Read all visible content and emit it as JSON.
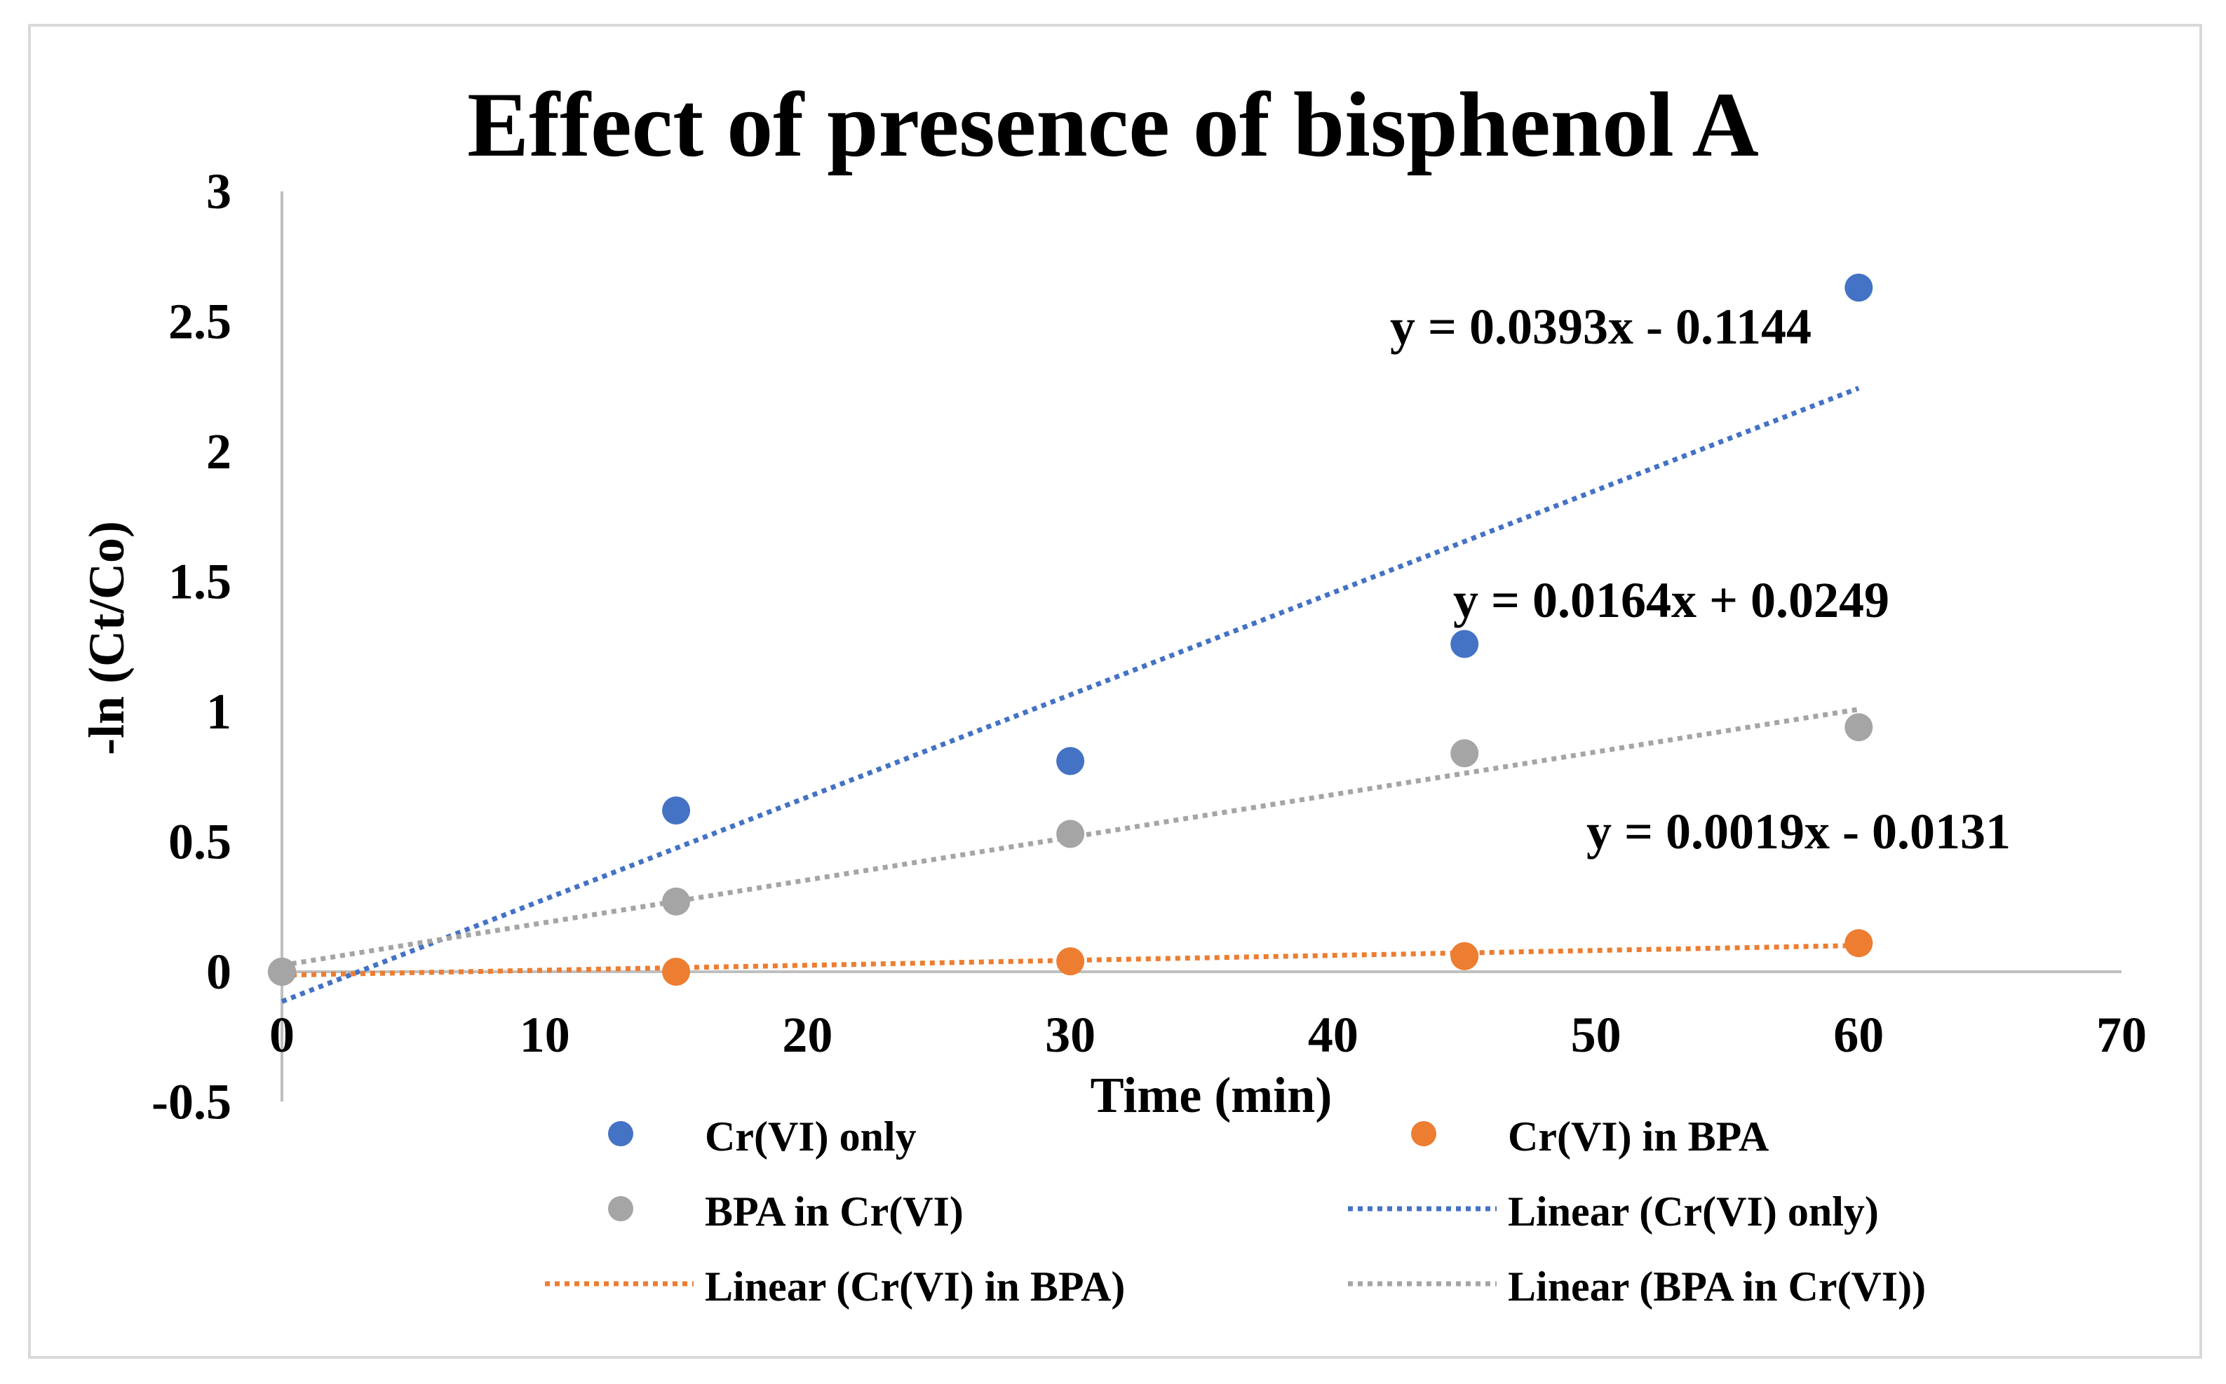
{
  "chart_data": {
    "type": "scatter",
    "title": "Effect of presence of bisphenol A",
    "xlabel": "Time (min)",
    "ylabel": "-ln (Ct/Co)",
    "xlim": [
      0,
      70
    ],
    "ylim": [
      -0.5,
      3
    ],
    "xticks": [
      0,
      10,
      20,
      30,
      40,
      50,
      60,
      70
    ],
    "xtick_labels": [
      "0",
      "10",
      "20",
      "30",
      "40",
      "50",
      "60",
      "70"
    ],
    "yticks": [
      -0.5,
      0,
      0.5,
      1,
      1.5,
      2,
      2.5,
      3
    ],
    "ytick_labels": [
      "-0.5",
      "0",
      "0.5",
      "1",
      "1.5",
      "2",
      "2.5",
      "3"
    ],
    "grid": false,
    "legend_position": "bottom",
    "series": [
      {
        "name": "Cr(VI) only",
        "color": "#4472C4",
        "x": [
          0,
          15,
          30,
          45,
          60
        ],
        "y": [
          0,
          0.62,
          0.81,
          1.26,
          2.63
        ]
      },
      {
        "name": "Cr(VI) in BPA",
        "color": "#ED7D31",
        "x": [
          0,
          15,
          30,
          45,
          60
        ],
        "y": [
          0,
          0.0,
          0.04,
          0.06,
          0.11
        ]
      },
      {
        "name": "BPA in Cr(VI)",
        "color": "#A5A5A5",
        "x": [
          0,
          15,
          30,
          45,
          60
        ],
        "y": [
          0,
          0.27,
          0.53,
          0.84,
          0.94
        ]
      }
    ],
    "trendlines": [
      {
        "name": "Linear (Cr(VI) only)",
        "color": "#4472C4",
        "slope": 0.0393,
        "intercept": -0.1144,
        "x_range": [
          0,
          60
        ],
        "equation": "y = 0.0393x - 0.1144"
      },
      {
        "name": "Linear (Cr(VI) in BPA)",
        "color": "#ED7D31",
        "slope": 0.0019,
        "intercept": -0.0131,
        "x_range": [
          0,
          60
        ],
        "equation": "y = 0.0019x - 0.0131"
      },
      {
        "name": "Linear (BPA in Cr(VI))",
        "color": "#A5A5A5",
        "slope": 0.0164,
        "intercept": 0.0249,
        "x_range": [
          0,
          60
        ],
        "equation": "y = 0.0164x + 0.0249"
      }
    ]
  }
}
